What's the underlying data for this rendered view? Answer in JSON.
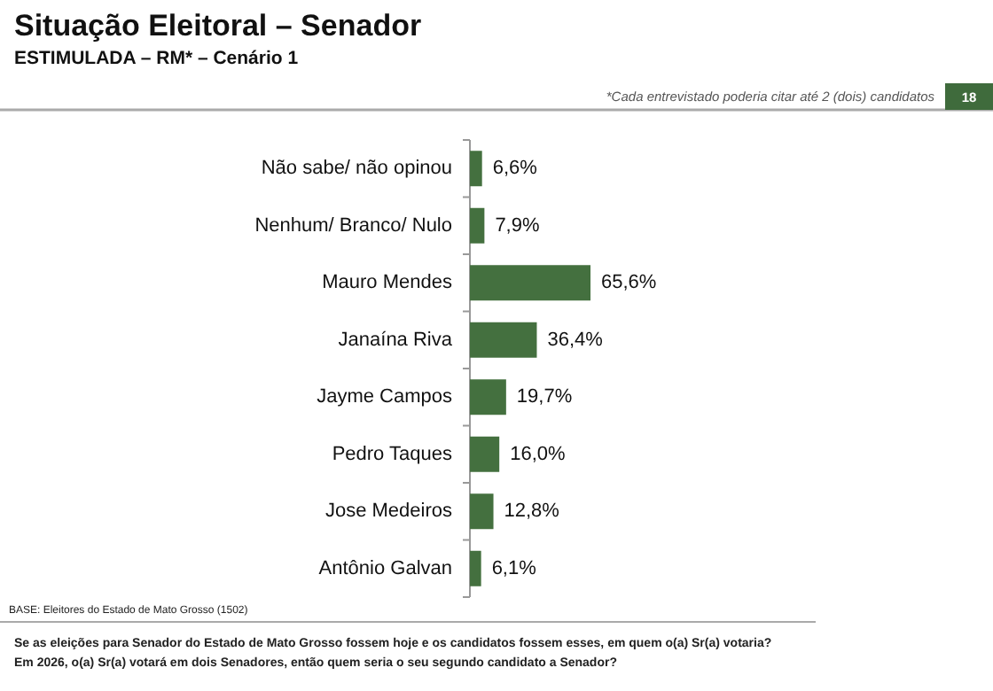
{
  "chart_data": {
    "type": "bar",
    "orientation": "horizontal",
    "title": "Situação Eleitoral – Senador",
    "subtitle": "ESTIMULADA – RM* – Cenário 1",
    "categories": [
      "Não sabe/ não opinou",
      "Nenhum/ Branco/ Nulo",
      "Mauro Mendes",
      "Janaína Riva",
      "Jayme Campos",
      "Pedro Taques",
      "Jose Medeiros",
      "Antônio Galvan"
    ],
    "values": [
      6.6,
      7.9,
      65.6,
      36.4,
      19.7,
      16.0,
      12.8,
      6.1
    ],
    "value_labels": [
      "6,6%",
      "7,9%",
      "65,6%",
      "36,4%",
      "19,7%",
      "16,0%",
      "12,8%",
      "6,1%"
    ],
    "color": "#44703f",
    "annotations": [
      "*Cada entrevistado poderia citar até 2 (dois) candidatos",
      "18",
      "BASE: Eleitores do Estado de Mato Grosso (1502)",
      "Se as eleições para Senador do Estado de Mato Grosso fossem hoje e os candidatos fossem esses, em quem o(a)  Sr(a) votaria?",
      "Em 2026, o(a) Sr(a) votará em dois Senadores, então quem seria o seu segundo candidato a Senador?"
    ]
  }
}
